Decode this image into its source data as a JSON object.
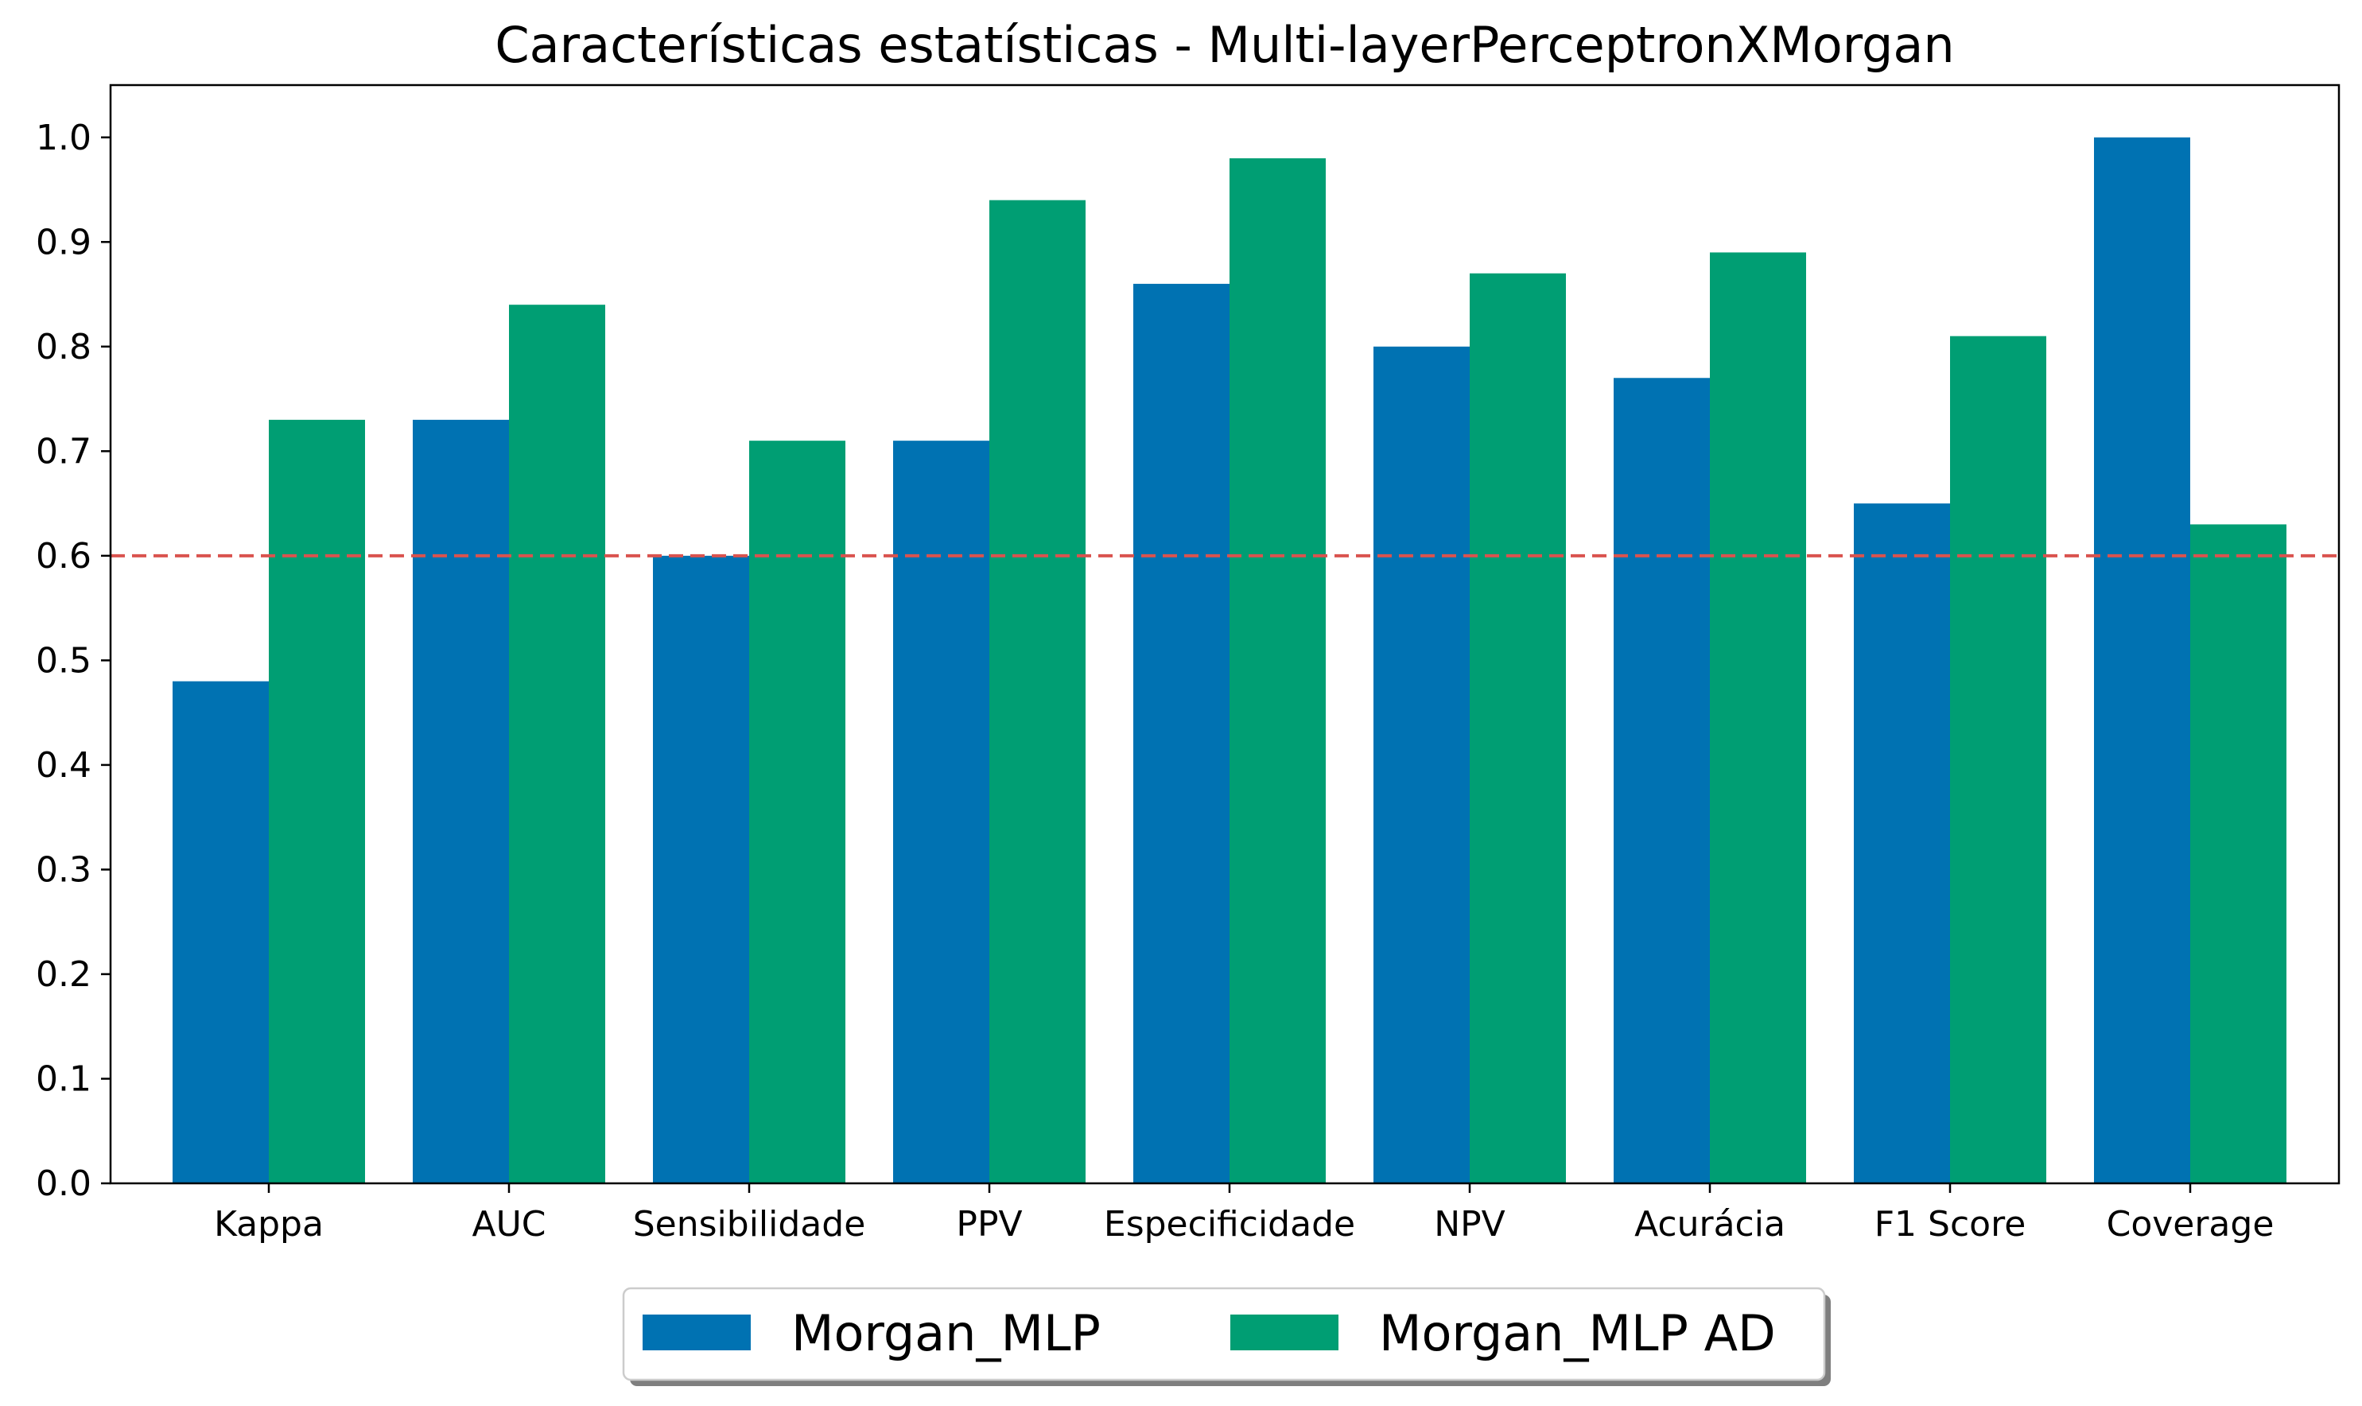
{
  "chart_data": {
    "type": "bar",
    "title": "Características estatísticas - Multi-layerPerceptronXMorgan",
    "xlabel": "",
    "ylabel": "",
    "categories": [
      "Kappa",
      "AUC",
      "Sensibilidade",
      "PPV",
      "Especificidade",
      "NPV",
      "Acurácia",
      "F1 Score",
      "Coverage"
    ],
    "series": [
      {
        "name": "Morgan_MLP",
        "color": "#0072b2",
        "values": [
          0.48,
          0.73,
          0.6,
          0.71,
          0.86,
          0.8,
          0.77,
          0.65,
          1.0
        ]
      },
      {
        "name": "Morgan_MLP AD",
        "color": "#009e73",
        "values": [
          0.73,
          0.84,
          0.71,
          0.94,
          0.98,
          0.87,
          0.89,
          0.81,
          0.63
        ]
      }
    ],
    "ylim": [
      0,
      1.05
    ],
    "yticks": [
      "0.0",
      "0.1",
      "0.2",
      "0.3",
      "0.4",
      "0.5",
      "0.6",
      "0.7",
      "0.8",
      "0.9",
      "1.0"
    ],
    "reference_line": {
      "y": 0.6,
      "style": "dashed",
      "color": "#d9534f"
    },
    "grid": false,
    "legend_position": "bottom-center"
  }
}
